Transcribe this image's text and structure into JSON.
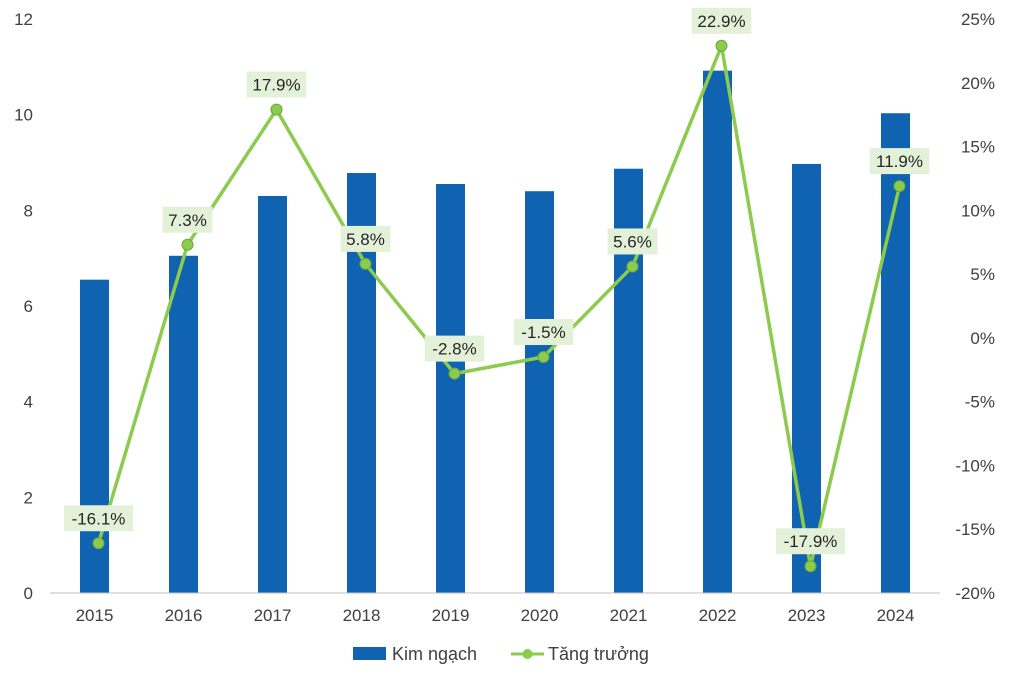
{
  "chart_data": {
    "type": "bar",
    "categories": [
      "2015",
      "2016",
      "2017",
      "2018",
      "2019",
      "2020",
      "2021",
      "2022",
      "2023",
      "2024"
    ],
    "series": [
      {
        "name": "Kim ngạch",
        "type": "bar",
        "axis": "left",
        "color": "#0F63B0",
        "values": [
          6.55,
          7.05,
          8.3,
          8.78,
          8.55,
          8.4,
          8.87,
          10.92,
          8.97,
          10.03
        ]
      },
      {
        "name": "Tăng trưởng",
        "type": "line",
        "axis": "right",
        "color": "#8CCB4E",
        "values": [
          -16.1,
          7.3,
          17.9,
          5.8,
          -2.8,
          -1.5,
          5.6,
          22.9,
          -17.9,
          11.9
        ],
        "labels": [
          "-16.1%",
          "7.3%",
          "17.9%",
          "5.8%",
          "-2.8%",
          "-1.5%",
          "5.6%",
          "22.9%",
          "-17.9%",
          "11.9%"
        ]
      }
    ],
    "y_left": {
      "ylim": [
        0,
        12
      ],
      "ticks": [
        "0",
        "2",
        "4",
        "6",
        "8",
        "10",
        "12"
      ]
    },
    "y_right": {
      "ylim": [
        -20,
        25
      ],
      "ticks": [
        "-20%",
        "-15%",
        "-10%",
        "-5%",
        "0%",
        "5%",
        "10%",
        "15%",
        "20%",
        "25%"
      ]
    },
    "grid": false,
    "legend_position": "bottom",
    "data_label_bg": "#E4F1D9"
  }
}
